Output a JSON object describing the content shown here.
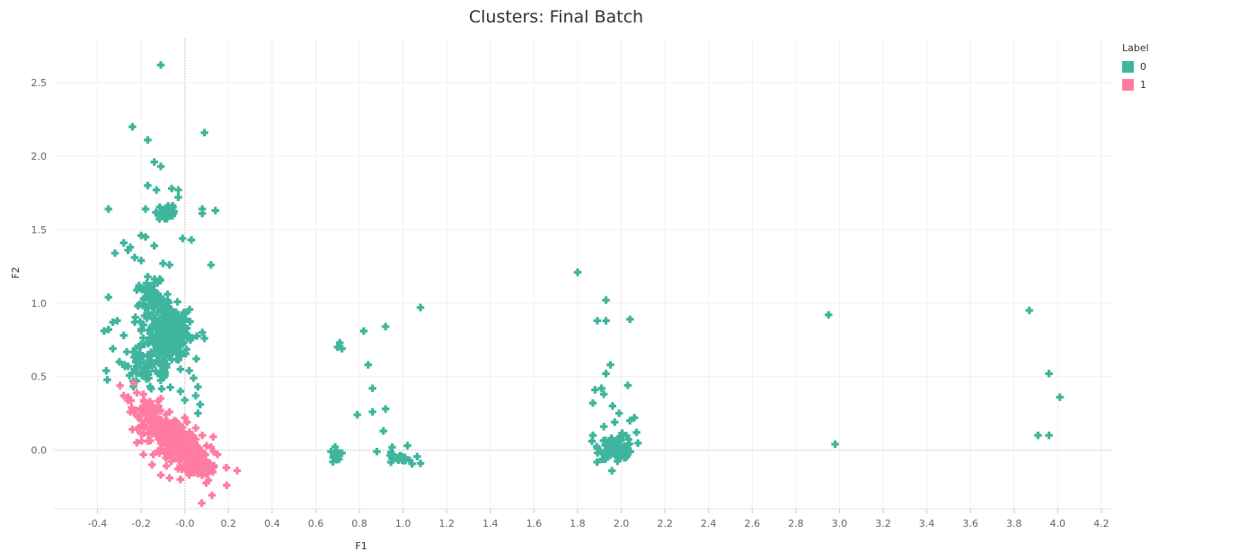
{
  "chart_data": {
    "type": "scatter",
    "title": "Clusters: Final Batch",
    "xlabel": "F1",
    "ylabel": "F2",
    "xlim": [
      -0.6,
      4.25
    ],
    "ylim": [
      -0.4,
      2.8
    ],
    "x_ticks": [
      -0.4,
      -0.2,
      0.0,
      0.2,
      0.4,
      0.6,
      0.8,
      1.0,
      1.2,
      1.4,
      1.6,
      1.8,
      2.0,
      2.2,
      2.4,
      2.6,
      2.8,
      3.0,
      3.2,
      3.4,
      3.6,
      3.8,
      4.0,
      4.2
    ],
    "x_tick_labels": [
      "-0.4",
      "-0.2",
      "-0.0",
      "0.2",
      "0.4",
      "0.6",
      "0.8",
      "1.0",
      "1.2",
      "1.4",
      "1.6",
      "1.8",
      "2.0",
      "2.2",
      "2.4",
      "2.6",
      "2.8",
      "3.0",
      "3.2",
      "3.4",
      "3.6",
      "3.8",
      "4.0",
      "4.2"
    ],
    "y_ticks": [
      0.0,
      0.5,
      1.0,
      1.5,
      2.0,
      2.5
    ],
    "y_tick_labels": [
      "0.0",
      "0.5",
      "1.0",
      "1.5",
      "2.0",
      "2.5"
    ],
    "grid": true,
    "marker": "plus",
    "legend": {
      "title": "Label",
      "position": "top-right",
      "entries": [
        {
          "label": "0",
          "color": "#3fb59d"
        },
        {
          "label": "1",
          "color": "#ff7ba2"
        }
      ]
    },
    "series": [
      {
        "name": "0",
        "color": "#3fb59d",
        "points": [
          [
            -0.11,
            2.62
          ],
          [
            -0.24,
            2.2
          ],
          [
            -0.17,
            2.11
          ],
          [
            0.09,
            2.16
          ],
          [
            -0.14,
            1.96
          ],
          [
            -0.11,
            1.93
          ],
          [
            -0.17,
            1.8
          ],
          [
            -0.13,
            1.77
          ],
          [
            -0.06,
            1.78
          ],
          [
            -0.03,
            1.77
          ],
          [
            -0.35,
            1.64
          ],
          [
            -0.18,
            1.64
          ],
          [
            0.08,
            1.64
          ],
          [
            0.08,
            1.61
          ],
          [
            0.14,
            1.63
          ],
          [
            -0.03,
            1.72
          ],
          [
            -0.2,
            1.46
          ],
          [
            -0.18,
            1.45
          ],
          [
            -0.14,
            1.39
          ],
          [
            -0.01,
            1.44
          ],
          [
            0.03,
            1.43
          ],
          [
            -0.25,
            1.38
          ],
          [
            -0.28,
            1.41
          ],
          [
            -0.32,
            1.34
          ],
          [
            -0.23,
            1.31
          ],
          [
            -0.2,
            1.29
          ],
          [
            -0.26,
            1.36
          ],
          [
            -0.1,
            1.27
          ],
          [
            -0.07,
            1.26
          ],
          [
            0.12,
            1.26
          ],
          [
            -0.17,
            1.18
          ],
          [
            -0.21,
            1.12
          ],
          [
            -0.35,
            1.04
          ],
          [
            -0.33,
            0.87
          ],
          [
            -0.31,
            0.88
          ],
          [
            -0.37,
            0.81
          ],
          [
            -0.35,
            0.82
          ],
          [
            -0.28,
            0.78
          ],
          [
            -0.33,
            0.69
          ],
          [
            -0.3,
            0.6
          ],
          [
            -0.36,
            0.54
          ],
          [
            -0.26,
            0.57
          ],
          [
            -0.22,
            0.53
          ],
          [
            -0.18,
            0.55
          ],
          [
            -0.15,
            0.57
          ],
          [
            -0.1,
            0.57
          ],
          [
            -0.02,
            0.55
          ],
          [
            0.02,
            0.54
          ],
          [
            0.04,
            0.49
          ],
          [
            0.06,
            0.43
          ],
          [
            0.05,
            0.37
          ],
          [
            0.07,
            0.31
          ],
          [
            0.06,
            0.25
          ],
          [
            -0.02,
            0.4
          ],
          [
            0.0,
            0.34
          ],
          [
            0.09,
            0.76
          ],
          [
            0.08,
            0.8
          ],
          [
            -0.02,
            0.67
          ],
          [
            0.67,
            -0.01
          ],
          [
            0.7,
            -0.04
          ],
          [
            0.72,
            -0.02
          ],
          [
            0.68,
            -0.05
          ],
          [
            0.7,
            0.7
          ],
          [
            0.71,
            0.73
          ],
          [
            0.72,
            0.69
          ],
          [
            0.82,
            0.81
          ],
          [
            0.92,
            0.84
          ],
          [
            1.08,
            0.97
          ],
          [
            0.84,
            0.58
          ],
          [
            0.86,
            0.42
          ],
          [
            0.79,
            0.24
          ],
          [
            0.86,
            0.26
          ],
          [
            0.92,
            0.28
          ],
          [
            0.91,
            0.13
          ],
          [
            0.88,
            -0.01
          ],
          [
            0.95,
            0.02
          ],
          [
            1.02,
            0.03
          ],
          [
            1.08,
            -0.09
          ],
          [
            1.03,
            -0.07
          ],
          [
            1.8,
            1.21
          ],
          [
            1.93,
            1.02
          ],
          [
            1.93,
            0.88
          ],
          [
            1.89,
            0.88
          ],
          [
            2.04,
            0.89
          ],
          [
            1.95,
            0.58
          ],
          [
            1.93,
            0.52
          ],
          [
            1.91,
            0.42
          ],
          [
            1.88,
            0.41
          ],
          [
            1.92,
            0.38
          ],
          [
            1.87,
            0.32
          ],
          [
            2.03,
            0.44
          ],
          [
            1.96,
            0.3
          ],
          [
            1.99,
            0.25
          ],
          [
            2.06,
            0.22
          ],
          [
            2.04,
            0.2
          ],
          [
            1.97,
            0.19
          ],
          [
            1.92,
            0.16
          ],
          [
            1.87,
            0.1
          ],
          [
            2.07,
            0.12
          ],
          [
            2.95,
            0.92
          ],
          [
            2.98,
            0.04
          ],
          [
            3.87,
            0.95
          ],
          [
            3.96,
            0.52
          ],
          [
            4.01,
            0.36
          ],
          [
            3.91,
            0.1
          ],
          [
            3.96,
            0.1
          ]
        ]
      },
      {
        "name": "1",
        "color": "#ff7ba2",
        "points": [
          [
            -0.28,
            0.37
          ],
          [
            -0.26,
            0.36
          ],
          [
            -0.22,
            0.39
          ],
          [
            -0.19,
            0.38
          ],
          [
            -0.16,
            0.33
          ],
          [
            -0.12,
            0.3
          ],
          [
            -0.07,
            0.26
          ],
          [
            0.01,
            0.19
          ],
          [
            0.05,
            0.15
          ],
          [
            0.08,
            0.1
          ],
          [
            0.13,
            0.09
          ],
          [
            0.12,
            0.02
          ],
          [
            0.15,
            -0.03
          ],
          [
            0.19,
            -0.12
          ],
          [
            0.24,
            -0.14
          ],
          [
            0.1,
            -0.12
          ],
          [
            0.06,
            -0.16
          ],
          [
            0.02,
            -0.17
          ],
          [
            -0.02,
            -0.2
          ],
          [
            -0.07,
            -0.19
          ],
          [
            -0.11,
            -0.17
          ],
          [
            -0.15,
            -0.1
          ],
          [
            -0.19,
            -0.03
          ],
          [
            -0.22,
            0.05
          ],
          [
            -0.24,
            0.14
          ],
          [
            -0.21,
            0.23
          ],
          [
            -0.25,
            0.26
          ],
          [
            -0.2,
            0.2
          ],
          [
            0.1,
            0.03
          ],
          [
            0.0,
            0.22
          ]
        ]
      }
    ]
  }
}
